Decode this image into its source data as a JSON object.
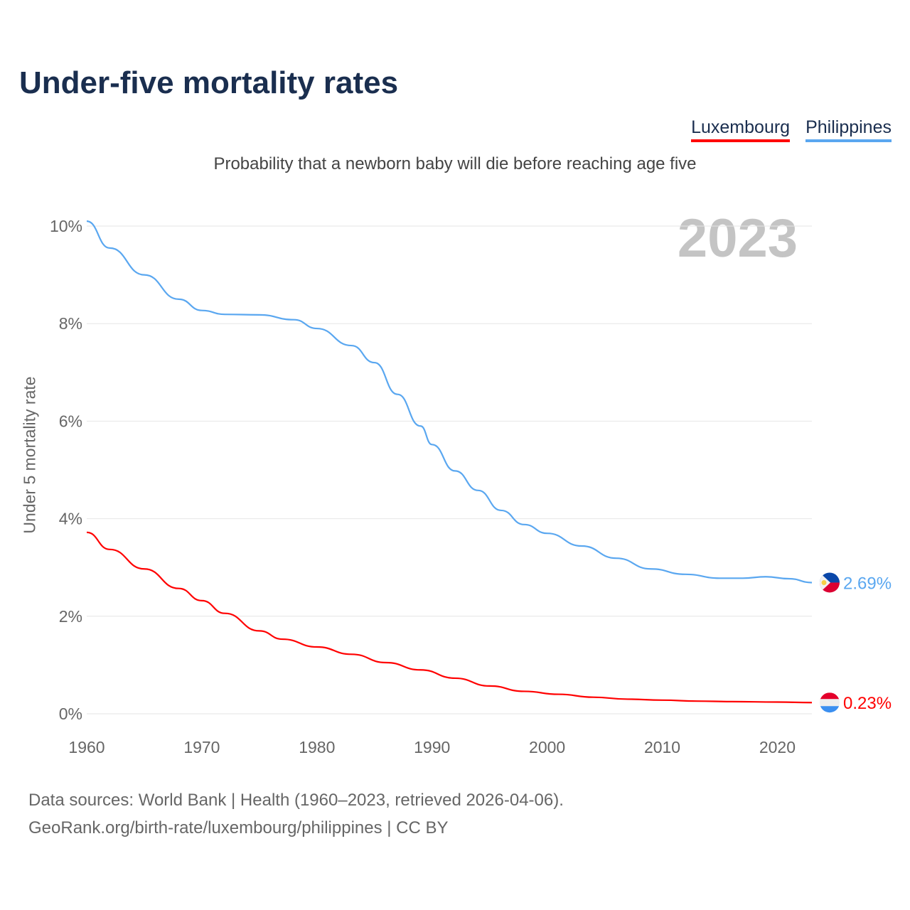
{
  "title": "Under-five mortality rates",
  "subtitle": "Probability that a newborn baby will die before reaching age five",
  "year_label": "2023",
  "footer": {
    "line1": "Data sources: World Bank | Health (1960–2023, retrieved 2026-04-06).",
    "line2": "GeoRank.org/birth-rate/luxembourg/philippines | CC BY"
  },
  "chart_data": {
    "type": "line",
    "title": "Under-five mortality rates",
    "xlabel": "",
    "ylabel": "Under 5 mortality rate",
    "xlim": [
      1960,
      2023
    ],
    "ylim": [
      0,
      10
    ],
    "xticks": [
      "1960",
      "1970",
      "1980",
      "1990",
      "2000",
      "2010",
      "2020"
    ],
    "yticks": [
      "0%",
      "2%",
      "4%",
      "6%",
      "8%",
      "10%"
    ],
    "grid": true,
    "legend": "top-right",
    "series": [
      {
        "name": "Luxembourg",
        "color": "#ff0000",
        "end_label": "0.23%",
        "flag": "luxembourg-flag",
        "x": [
          1960,
          1962,
          1965,
          1968,
          1970,
          1972,
          1975,
          1977,
          1980,
          1983,
          1986,
          1989,
          1992,
          1995,
          1998,
          2001,
          2004,
          2007,
          2010,
          2013,
          2016,
          2020,
          2023
        ],
        "y": [
          3.72,
          3.37,
          2.97,
          2.57,
          2.32,
          2.06,
          1.7,
          1.53,
          1.37,
          1.22,
          1.05,
          0.9,
          0.73,
          0.57,
          0.46,
          0.4,
          0.34,
          0.3,
          0.28,
          0.26,
          0.25,
          0.24,
          0.23
        ]
      },
      {
        "name": "Philippines",
        "color": "#5aa7f0",
        "end_label": "2.69%",
        "flag": "philippines-flag",
        "x": [
          1960,
          1962,
          1965,
          1968,
          1970,
          1972,
          1975,
          1978,
          1980,
          1983,
          1985,
          1987,
          1989,
          1990,
          1992,
          1994,
          1996,
          1998,
          2000,
          2003,
          2006,
          2009,
          2012,
          2015,
          2017,
          2019,
          2021,
          2023
        ],
        "y": [
          10.1,
          9.55,
          9.0,
          8.5,
          8.27,
          8.19,
          8.18,
          8.08,
          7.9,
          7.55,
          7.2,
          6.55,
          5.9,
          5.52,
          4.98,
          4.58,
          4.17,
          3.88,
          3.7,
          3.44,
          3.19,
          2.97,
          2.86,
          2.78,
          2.78,
          2.81,
          2.77,
          2.69
        ]
      }
    ]
  }
}
